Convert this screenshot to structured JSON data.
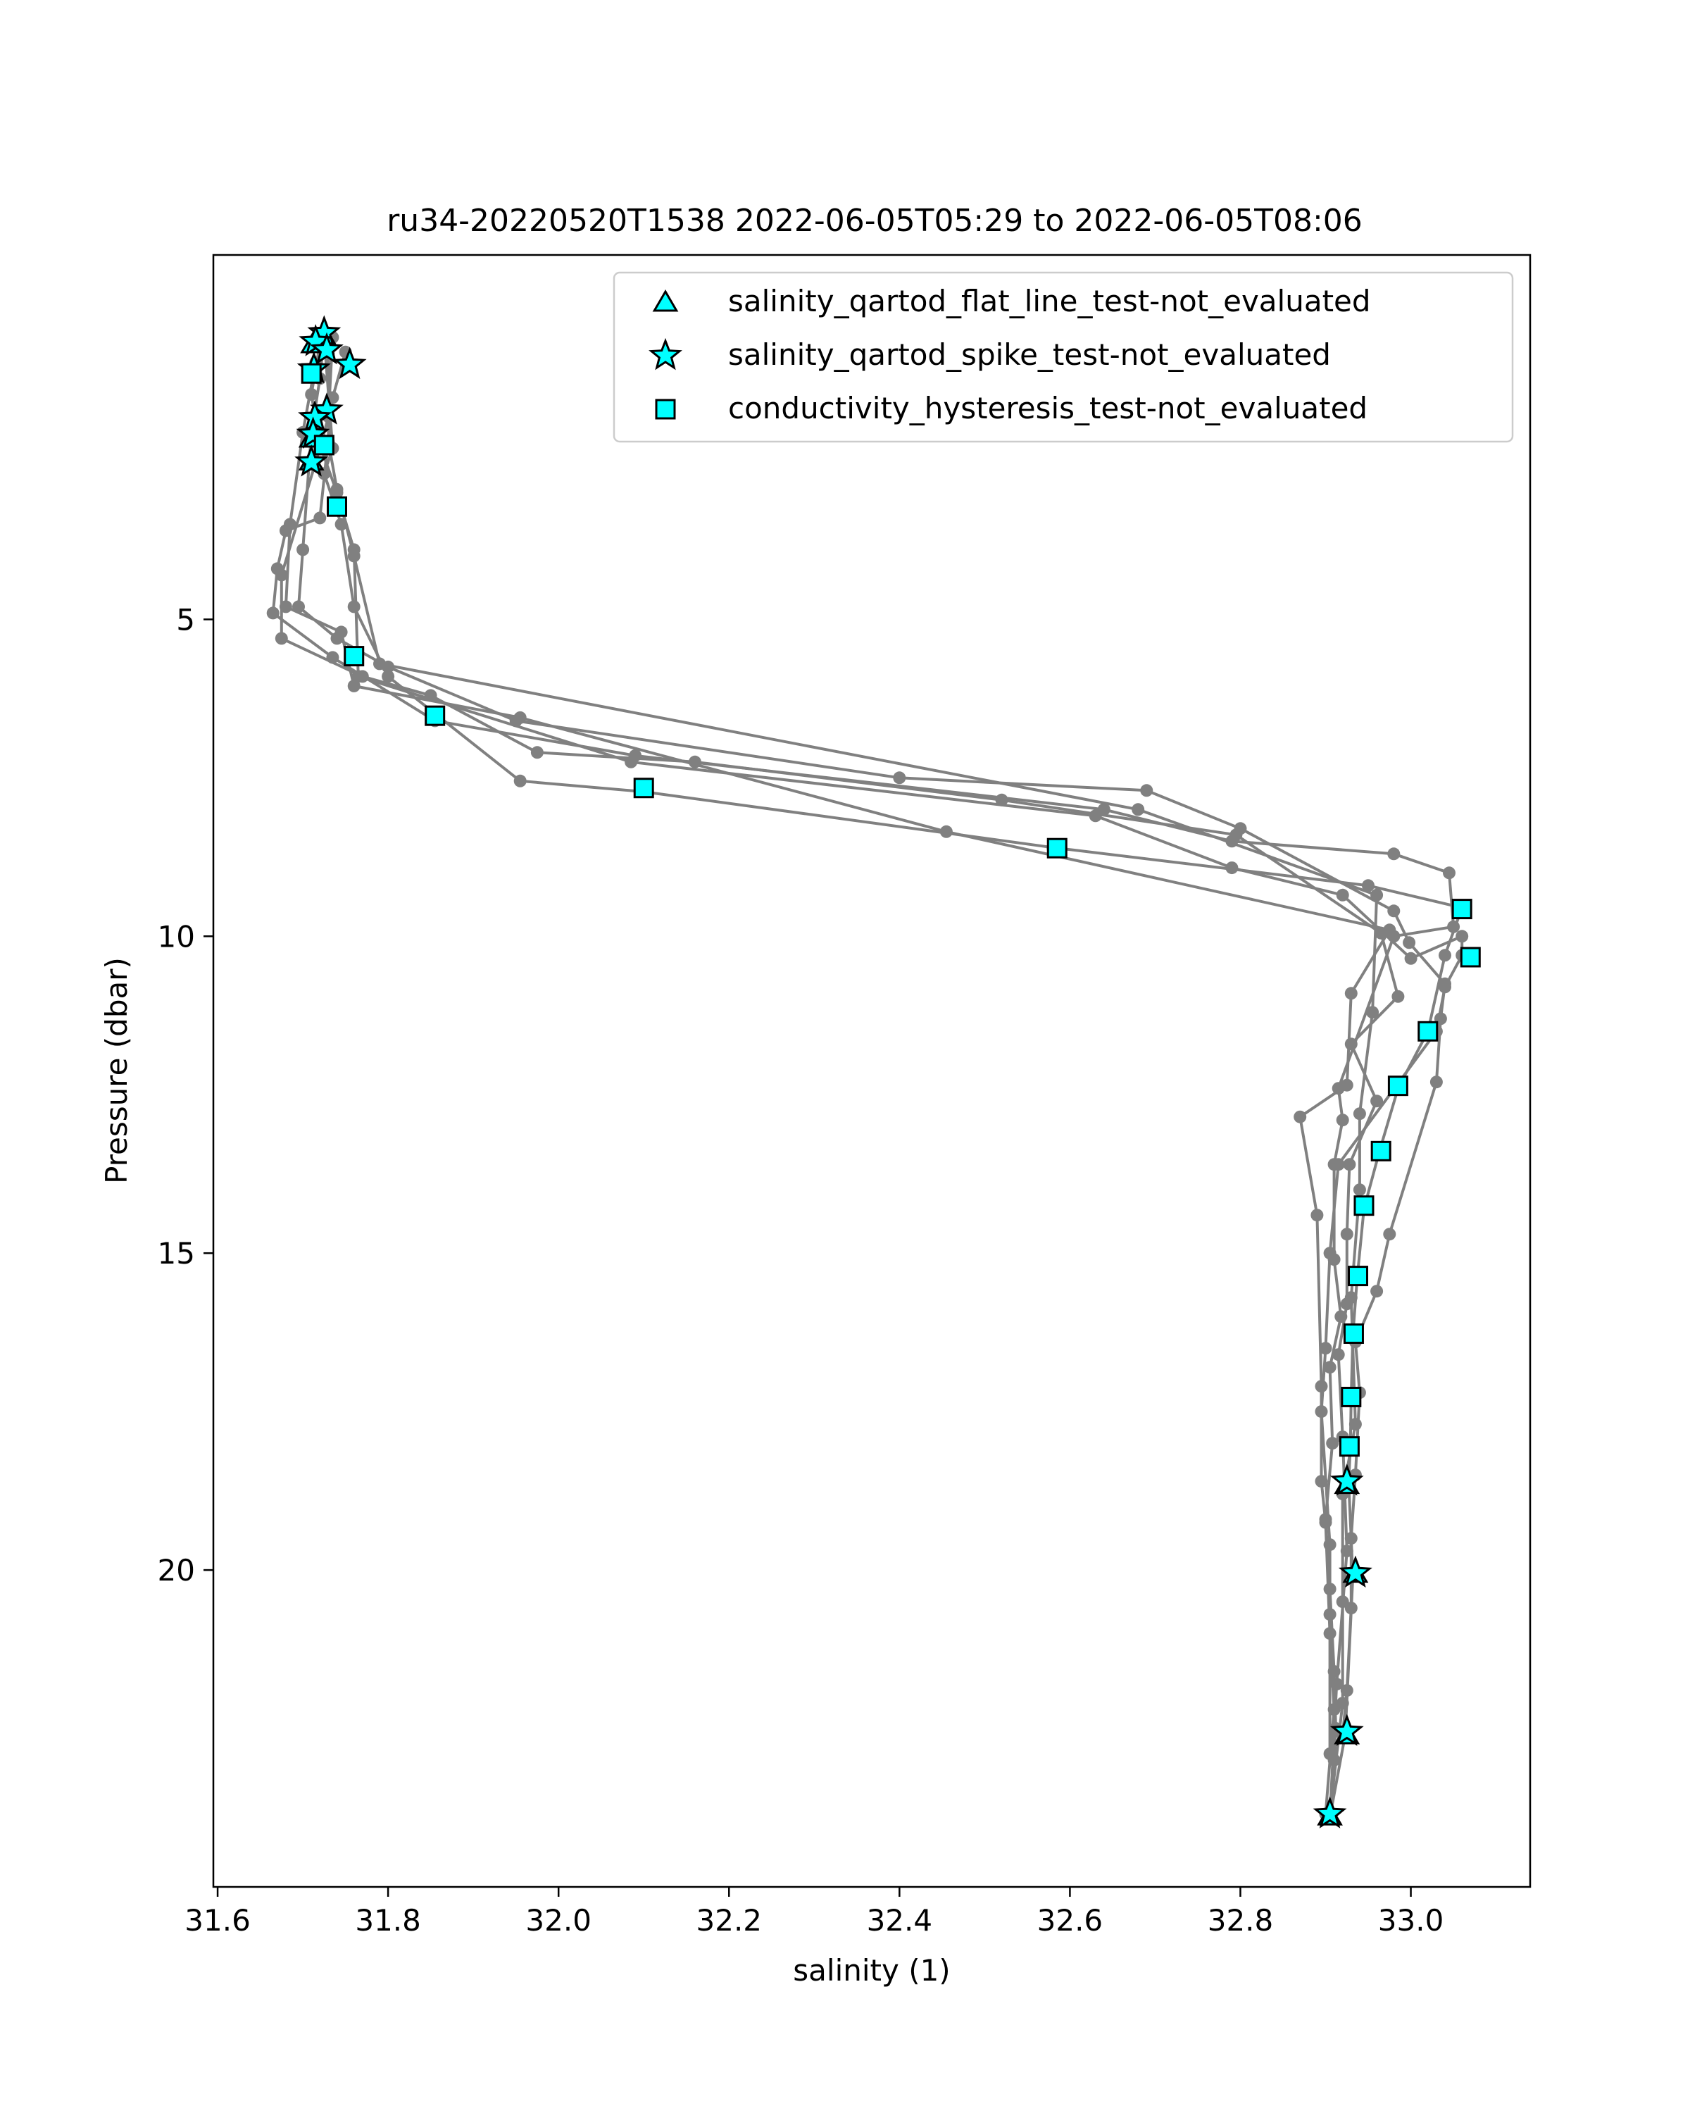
{
  "chart_data": {
    "type": "scatter",
    "title": "ru34-20220520T1538 2022-06-05T05:29 to 2022-06-05T08:06",
    "xlabel": "salinity (1)",
    "ylabel": "Pressure (dbar)",
    "xlim": [
      31.595,
      33.14
    ],
    "ylim": [
      25.0,
      -0.75
    ],
    "y_inverted": true,
    "x_ticks": [
      31.6,
      31.8,
      32.0,
      32.2,
      32.4,
      32.6,
      32.8,
      33.0
    ],
    "x_tick_labels": [
      "31.6",
      "31.8",
      "32.0",
      "32.2",
      "32.4",
      "32.6",
      "32.8",
      "33.0"
    ],
    "y_ticks": [
      5,
      10,
      15,
      20
    ],
    "y_tick_labels": [
      "5",
      "10",
      "15",
      "20"
    ],
    "grid": false,
    "legend_position": "top-right",
    "profile_color": "#808080",
    "marker_fill": "#00ffff",
    "marker_edge": "#000000",
    "profiles": [
      [
        [
          31.725,
          0.55
        ],
        [
          31.735,
          2.3
        ],
        [
          31.725,
          2.7
        ],
        [
          31.745,
          3.5
        ],
        [
          31.76,
          4.8
        ],
        [
          31.8,
          5.9
        ],
        [
          31.955,
          7.55
        ],
        [
          32.1,
          7.72
        ],
        [
          32.58,
          8.6
        ],
        [
          32.95,
          9.2
        ],
        [
          33.06,
          9.55
        ],
        [
          33.04,
          10.3
        ],
        [
          33.02,
          11.5
        ],
        [
          32.985,
          12.4
        ],
        [
          32.963,
          13.4
        ],
        [
          32.945,
          14.3
        ],
        [
          32.937,
          15.4
        ],
        [
          32.932,
          16.3
        ],
        [
          32.93,
          17.3
        ],
        [
          32.929,
          18.1
        ],
        [
          32.927,
          18.6
        ],
        [
          32.932,
          20.1
        ],
        [
          32.923,
          22.6
        ],
        [
          32.905,
          23.9
        ]
      ],
      [
        [
          31.75,
          0.78
        ],
        [
          31.735,
          1.5
        ],
        [
          31.72,
          3.4
        ],
        [
          31.68,
          3.6
        ],
        [
          31.67,
          4.2
        ],
        [
          31.665,
          4.9
        ],
        [
          31.735,
          5.6
        ],
        [
          31.855,
          6.6
        ],
        [
          32.09,
          7.15
        ],
        [
          32.64,
          8.0
        ],
        [
          32.79,
          8.5
        ],
        [
          32.98,
          8.7
        ],
        [
          33.045,
          9.0
        ],
        [
          33.05,
          9.85
        ],
        [
          32.98,
          10.0
        ],
        [
          32.915,
          12.4
        ],
        [
          32.92,
          12.9
        ],
        [
          32.91,
          13.6
        ],
        [
          32.91,
          15.1
        ],
        [
          32.918,
          16.0
        ],
        [
          32.905,
          16.8
        ],
        [
          32.908,
          18.0
        ],
        [
          32.9,
          19.2
        ],
        [
          32.905,
          20.3
        ],
        [
          32.91,
          21.6
        ],
        [
          32.912,
          22.5
        ],
        [
          32.91,
          23.0
        ],
        [
          32.905,
          23.9
        ]
      ],
      [
        [
          31.725,
          0.5
        ],
        [
          31.72,
          1.2
        ],
        [
          31.71,
          2.05
        ],
        [
          31.7,
          3.9
        ],
        [
          31.695,
          4.8
        ],
        [
          31.74,
          5.3
        ],
        [
          31.8,
          5.75
        ],
        [
          31.95,
          6.6
        ],
        [
          32.4,
          7.5
        ],
        [
          32.69,
          7.7
        ],
        [
          32.8,
          8.3
        ],
        [
          32.98,
          9.6
        ],
        [
          32.998,
          10.1
        ],
        [
          33.04,
          10.75
        ],
        [
          33.035,
          11.3
        ],
        [
          33.03,
          12.3
        ],
        [
          32.975,
          14.7
        ],
        [
          32.96,
          15.6
        ],
        [
          32.935,
          16.4
        ],
        [
          32.94,
          17.2
        ],
        [
          32.935,
          18.5
        ],
        [
          32.93,
          19.5
        ],
        [
          32.93,
          20.6
        ],
        [
          32.925,
          21.9
        ],
        [
          32.92,
          22.6
        ]
      ],
      [
        [
          31.735,
          0.55
        ],
        [
          31.73,
          1.8
        ],
        [
          31.72,
          2.3
        ],
        [
          31.675,
          4.3
        ],
        [
          31.675,
          5.3
        ],
        [
          31.77,
          5.9
        ],
        [
          31.85,
          6.2
        ],
        [
          31.975,
          7.1
        ],
        [
          32.16,
          7.25
        ],
        [
          32.52,
          7.85
        ],
        [
          32.795,
          8.4
        ],
        [
          32.965,
          9.95
        ],
        [
          32.985,
          10.95
        ],
        [
          32.93,
          11.7
        ],
        [
          32.96,
          12.6
        ],
        [
          32.928,
          13.6
        ],
        [
          32.925,
          14.7
        ],
        [
          32.925,
          15.8
        ],
        [
          32.915,
          16.6
        ],
        [
          32.92,
          17.9
        ],
        [
          32.925,
          19.7
        ],
        [
          32.913,
          21.8
        ],
        [
          32.905,
          23.9
        ]
      ],
      [
        [
          31.72,
          0.65
        ],
        [
          31.71,
          1.45
        ],
        [
          31.72,
          2.25
        ],
        [
          31.74,
          3.0
        ],
        [
          31.76,
          3.9
        ],
        [
          31.765,
          5.9
        ],
        [
          32.085,
          7.25
        ],
        [
          32.63,
          8.1
        ],
        [
          32.79,
          8.92
        ],
        [
          32.92,
          9.35
        ],
        [
          33.0,
          10.35
        ],
        [
          33.06,
          10.0
        ],
        [
          33.06,
          10.3
        ],
        [
          33.04,
          10.8
        ],
        [
          33.03,
          11.5
        ],
        [
          32.915,
          13.6
        ],
        [
          32.905,
          15.0
        ],
        [
          32.9,
          16.5
        ],
        [
          32.895,
          17.5
        ],
        [
          32.905,
          19.6
        ],
        [
          32.905,
          20.7
        ],
        [
          32.905,
          22.9
        ]
      ],
      [
        [
          31.715,
          0.95
        ],
        [
          31.7,
          2.05
        ],
        [
          31.685,
          3.5
        ],
        [
          31.68,
          4.8
        ],
        [
          31.745,
          5.2
        ],
        [
          31.76,
          6.05
        ],
        [
          31.955,
          6.55
        ],
        [
          32.455,
          8.35
        ],
        [
          32.975,
          9.9
        ],
        [
          32.93,
          10.9
        ],
        [
          32.925,
          12.35
        ],
        [
          32.87,
          12.85
        ],
        [
          32.89,
          14.4
        ],
        [
          32.895,
          17.1
        ],
        [
          32.895,
          18.6
        ],
        [
          32.9,
          19.25
        ],
        [
          32.905,
          21.0
        ],
        [
          32.91,
          22.2
        ],
        [
          32.9,
          23.85
        ]
      ],
      [
        [
          31.73,
          0.8
        ],
        [
          31.73,
          2.2
        ],
        [
          31.74,
          2.95
        ],
        [
          31.76,
          4.0
        ],
        [
          31.79,
          5.7
        ],
        [
          32.68,
          8.0
        ],
        [
          32.96,
          9.35
        ],
        [
          32.955,
          11.2
        ],
        [
          32.94,
          12.8
        ],
        [
          32.94,
          14.0
        ],
        [
          32.93,
          15.7
        ],
        [
          32.935,
          17.7
        ],
        [
          32.92,
          18.8
        ],
        [
          32.92,
          20.5
        ],
        [
          32.92,
          22.1
        ],
        [
          32.905,
          23.85
        ]
      ]
    ],
    "series": [
      {
        "name": "salinity_qartod_flat_line_test-not_evaluated",
        "marker": "triangle",
        "points": [
          [
            31.725,
            0.53
          ],
          [
            31.712,
            0.65
          ],
          [
            31.71,
            2.14
          ],
          [
            31.71,
            2.5
          ],
          [
            32.925,
            18.65
          ],
          [
            32.935,
            20.05
          ],
          [
            32.925,
            22.6
          ],
          [
            32.905,
            23.88
          ]
        ]
      },
      {
        "name": "salinity_qartod_spike_test-not_evaluated",
        "marker": "star",
        "points": [
          [
            31.725,
            0.48
          ],
          [
            31.715,
            0.62
          ],
          [
            31.728,
            0.75
          ],
          [
            31.755,
            0.98
          ],
          [
            31.713,
            1.05
          ],
          [
            31.728,
            1.7
          ],
          [
            31.714,
            1.82
          ],
          [
            31.712,
            2.08
          ],
          [
            31.71,
            2.52
          ],
          [
            32.925,
            18.6
          ],
          [
            32.935,
            20.05
          ],
          [
            32.925,
            22.55
          ],
          [
            32.905,
            23.85
          ]
        ]
      },
      {
        "name": "conductivity_hysteresis_test-not_evaluated",
        "marker": "square",
        "points": [
          [
            31.71,
            1.12
          ],
          [
            31.725,
            2.25
          ],
          [
            31.74,
            3.22
          ],
          [
            31.76,
            5.58
          ],
          [
            31.855,
            6.52
          ],
          [
            32.1,
            7.66
          ],
          [
            32.585,
            8.61
          ],
          [
            33.06,
            9.57
          ],
          [
            33.07,
            10.33
          ],
          [
            33.02,
            11.5
          ],
          [
            32.985,
            12.36
          ],
          [
            32.965,
            13.39
          ],
          [
            32.945,
            14.25
          ],
          [
            32.938,
            15.36
          ],
          [
            32.933,
            16.27
          ],
          [
            32.93,
            17.27
          ],
          [
            32.928,
            18.05
          ]
        ]
      }
    ]
  }
}
